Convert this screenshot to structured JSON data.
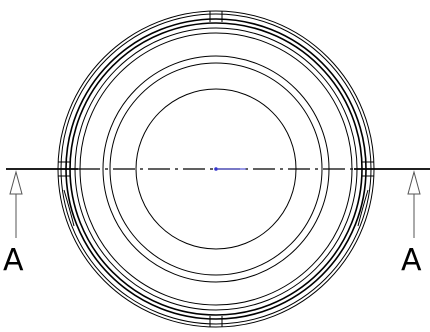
{
  "drawing": {
    "section_label_left": "A",
    "section_label_right": "A",
    "colors": {
      "line": "#000000",
      "arrow": "#555555",
      "center_mark": "#3333cc"
    }
  }
}
